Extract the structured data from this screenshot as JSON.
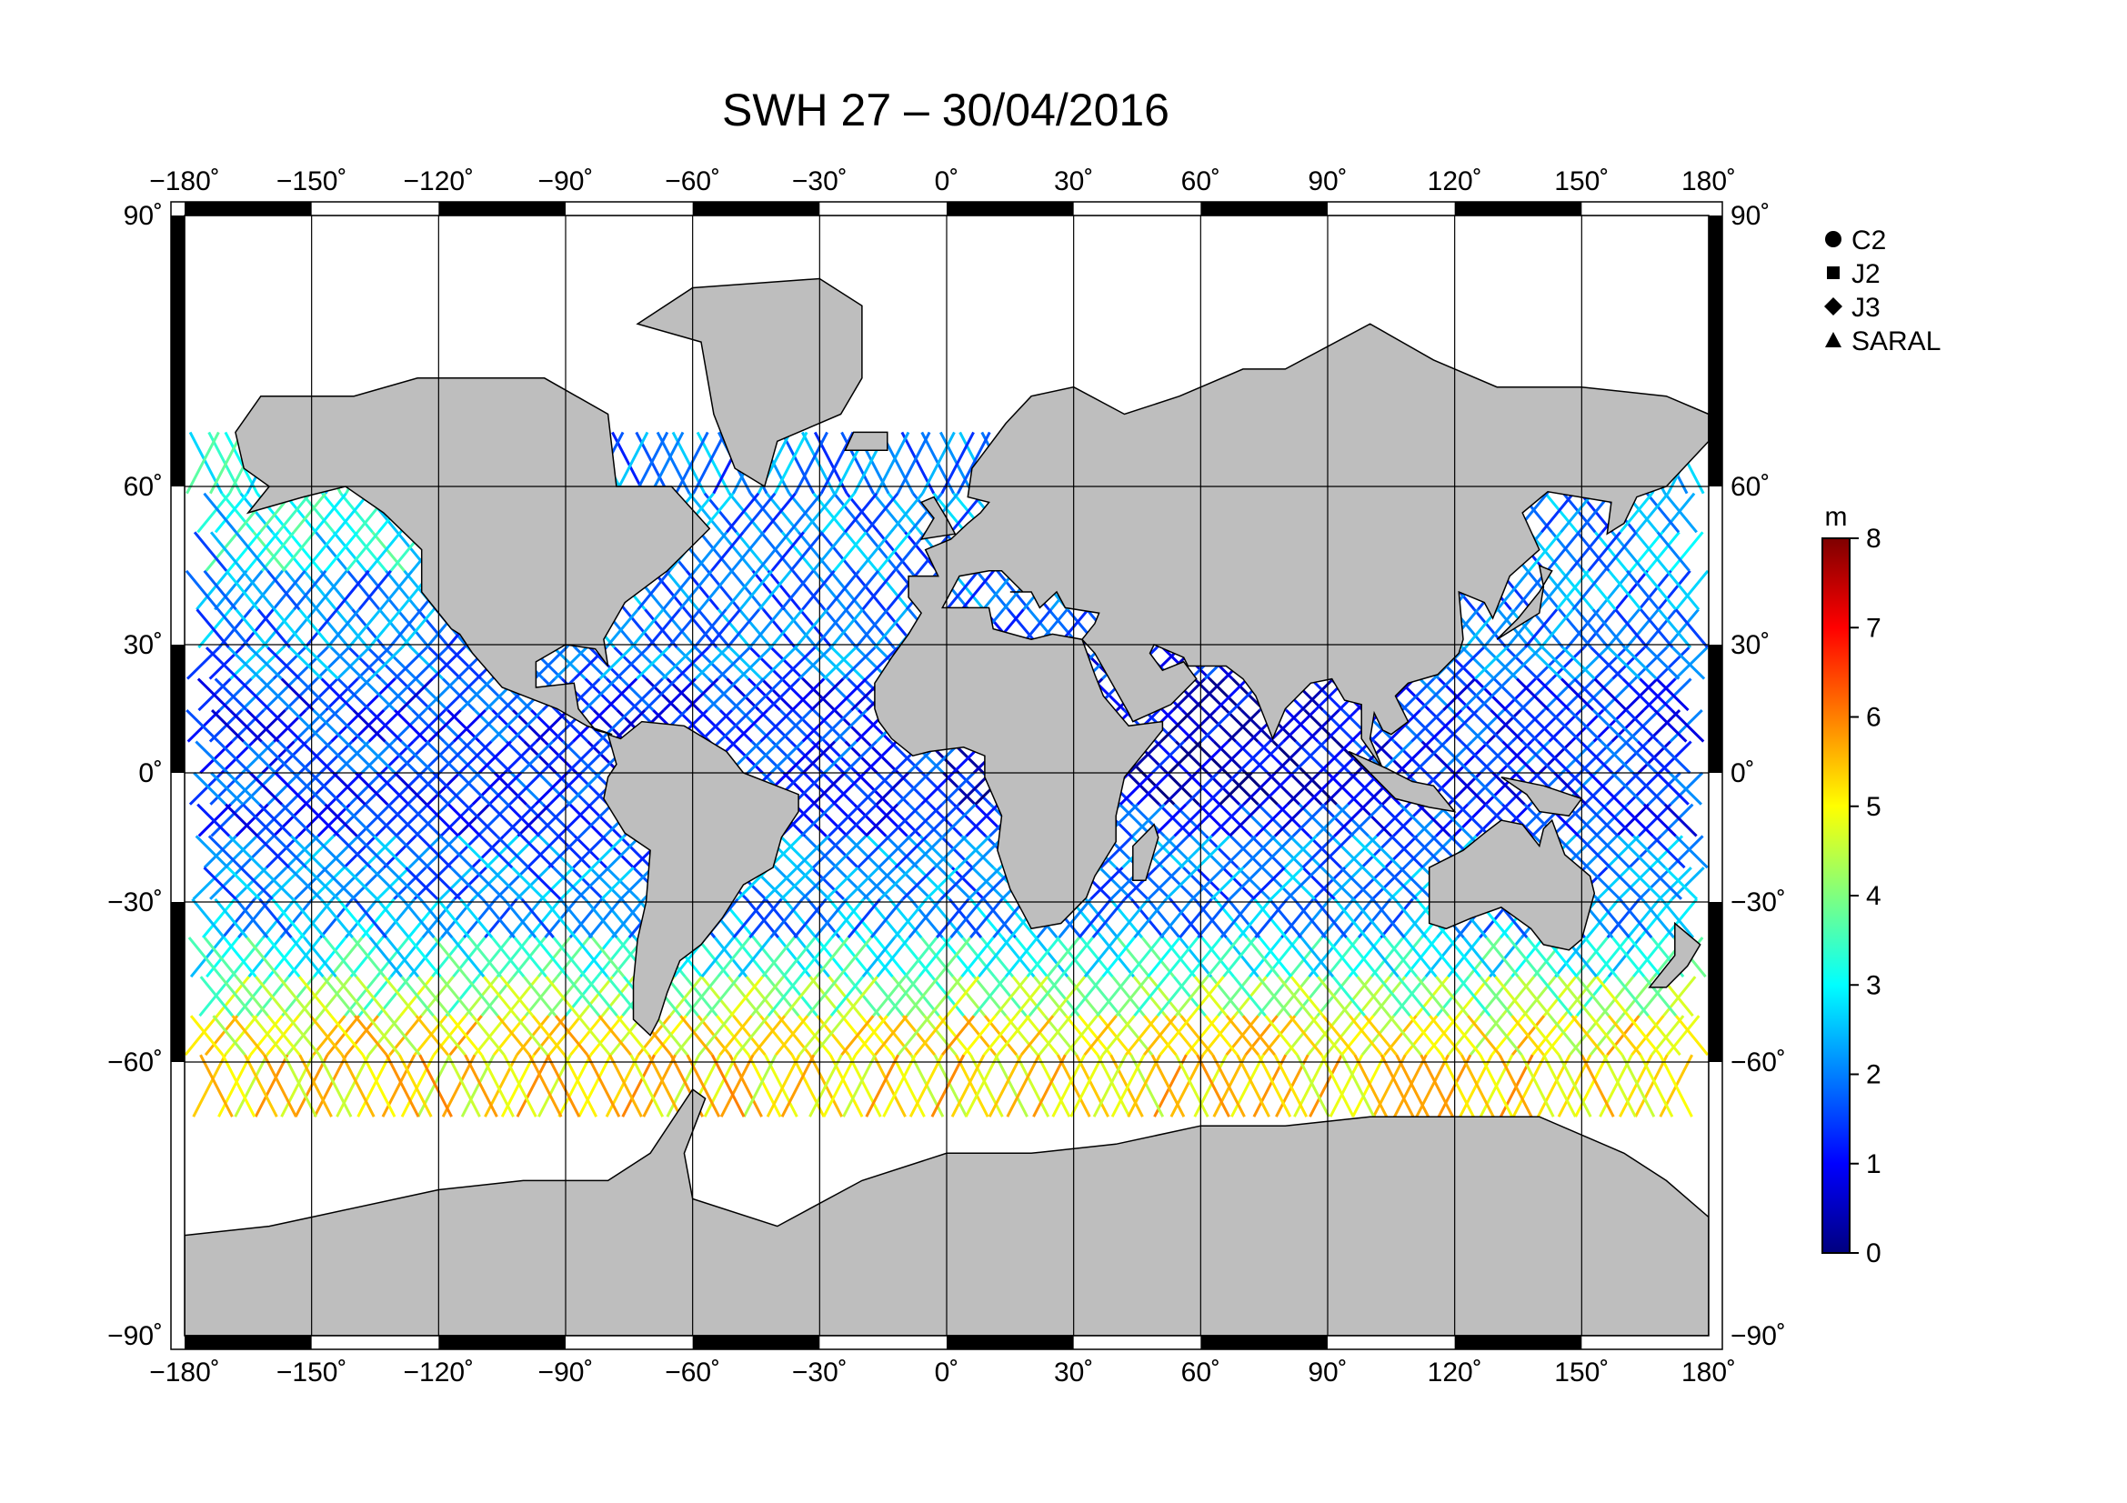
{
  "title": "SWH 27 – 30/04/2016",
  "map": {
    "lon_ticks": [
      {
        "value": -180,
        "label": "−180˚"
      },
      {
        "value": -150,
        "label": "−150˚"
      },
      {
        "value": -120,
        "label": "−120˚"
      },
      {
        "value": -90,
        "label": "−90˚"
      },
      {
        "value": -60,
        "label": "−60˚"
      },
      {
        "value": -30,
        "label": "−30˚"
      },
      {
        "value": 0,
        "label": "0˚"
      },
      {
        "value": 30,
        "label": "30˚"
      },
      {
        "value": 60,
        "label": "60˚"
      },
      {
        "value": 90,
        "label": "90˚"
      },
      {
        "value": 120,
        "label": "120˚"
      },
      {
        "value": 150,
        "label": "150˚"
      },
      {
        "value": 180,
        "label": "180˚"
      }
    ],
    "lat_ticks": [
      {
        "value": 90,
        "label": "90˚"
      },
      {
        "value": 60,
        "label": "60˚"
      },
      {
        "value": 30,
        "label": "30˚"
      },
      {
        "value": 0,
        "label": "0˚"
      },
      {
        "value": -30,
        "label": "−30˚"
      },
      {
        "value": -60,
        "label": "−60˚"
      },
      {
        "value": -90,
        "label": "−90˚"
      }
    ],
    "land_color": "#bebebe",
    "ocean_color": "#ffffff",
    "coastline_color": "#000000"
  },
  "legend": {
    "entries": [
      {
        "symbol": "circle",
        "label": "C2"
      },
      {
        "symbol": "square",
        "label": "J2"
      },
      {
        "symbol": "diamond",
        "label": "J3"
      },
      {
        "symbol": "triangle",
        "label": "SARAL"
      }
    ]
  },
  "colorbar": {
    "unit": "m",
    "min": 0,
    "max": 8,
    "ticks": [
      "0",
      "1",
      "2",
      "3",
      "4",
      "5",
      "6",
      "7",
      "8"
    ],
    "colormap": [
      "#00007f",
      "#0000ff",
      "#007fff",
      "#00ffff",
      "#7fff7f",
      "#ffff00",
      "#ff7f00",
      "#ff0000",
      "#7f0000"
    ]
  }
}
